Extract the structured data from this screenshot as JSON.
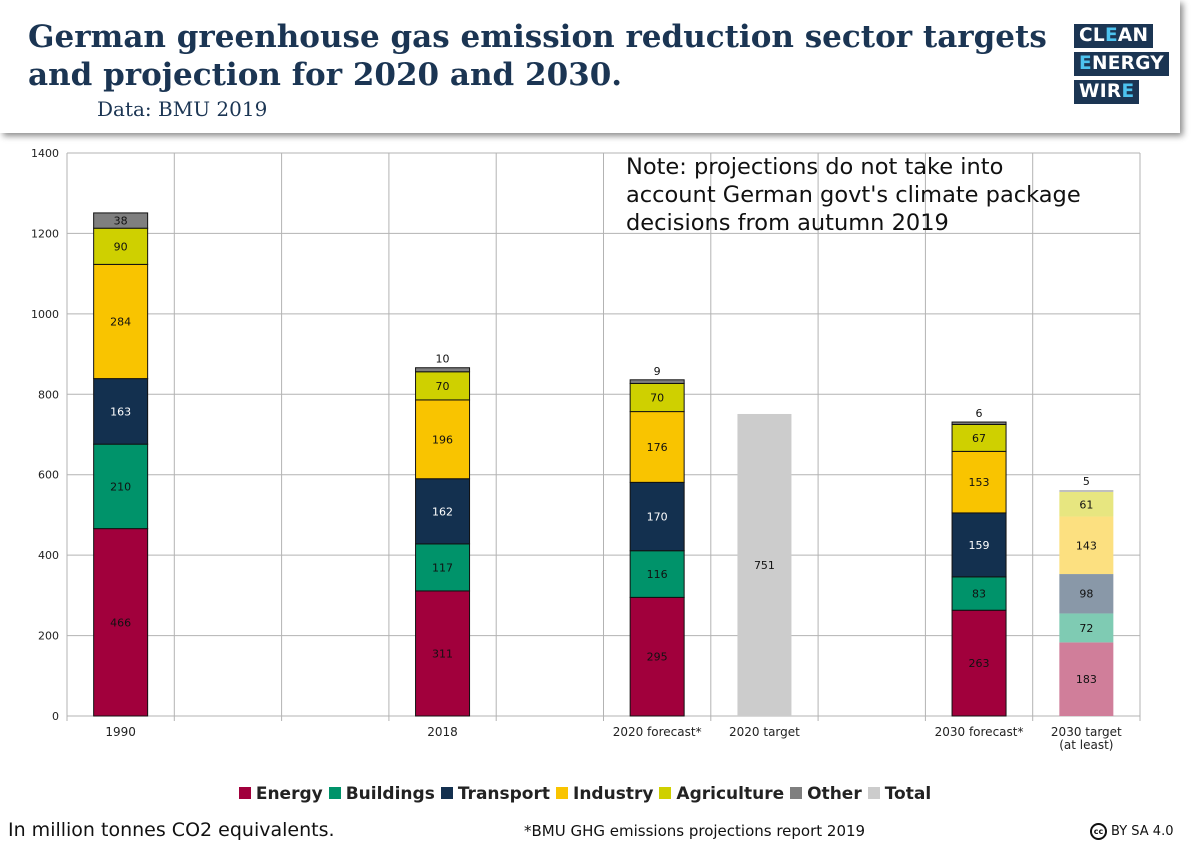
{
  "header": {
    "title": "German greenhouse gas emission reduction sector targets\nand projection for 2020 and 2030.",
    "subtitle": "Data: BMU 2019"
  },
  "logo": {
    "lines": [
      {
        "lead": "CL",
        "highlight": "E",
        "rest": "AN"
      },
      {
        "lead": "",
        "highlight": "E",
        "rest": "NERGY"
      },
      {
        "lead": "WIR",
        "highlight": "E",
        "rest": ""
      }
    ]
  },
  "note": [
    "Note: projections do not take into",
    "account German govt's climate package",
    "decisions from autumn 2019"
  ],
  "footer": {
    "unit_note": "In million tonnes CO2 equivalents.",
    "source_note": "*BMU GHG emissions projections report 2019",
    "cc_symbol": "cc",
    "license": "BY SA 4.0"
  },
  "legend": [
    {
      "name": "Energy",
      "color": "#a1003c"
    },
    {
      "name": "Buildings",
      "color": "#00936a"
    },
    {
      "name": "Transport",
      "color": "#13304f"
    },
    {
      "name": "Industry",
      "color": "#f9c400"
    },
    {
      "name": "Agriculture",
      "color": "#cfd000"
    },
    {
      "name": "Other",
      "color": "#7f7f7f"
    },
    {
      "name": "Total",
      "color": "#cccccc"
    }
  ],
  "chart_data": {
    "type": "bar",
    "stacked": true,
    "ylim": [
      0,
      1400
    ],
    "yticks": [
      0,
      200,
      400,
      600,
      800,
      1000,
      1200,
      1400
    ],
    "grid": true,
    "legend_position": "bottom",
    "categories": [
      {
        "label": [
          "1990"
        ],
        "slot": 0
      },
      {
        "label": [
          "2018"
        ],
        "slot": 3
      },
      {
        "label": [
          "2020 forecast*"
        ],
        "slot": 5
      },
      {
        "label": [
          "2020 target"
        ],
        "slot": 6
      },
      {
        "label": [
          "2030 forecast*"
        ],
        "slot": 8
      },
      {
        "label": [
          "2030 target",
          "(at least)"
        ],
        "slot": 9
      }
    ],
    "slots": 10,
    "series": [
      {
        "name": "Energy",
        "color": "#a1003c",
        "light_color": "#d07e9a",
        "label_color": "#111111",
        "values": [
          466,
          311,
          295,
          null,
          263,
          183
        ]
      },
      {
        "name": "Buildings",
        "color": "#00936a",
        "light_color": "#7fcbb3",
        "label_color": "#111111",
        "values": [
          210,
          117,
          116,
          null,
          83,
          72
        ]
      },
      {
        "name": "Transport",
        "color": "#13304f",
        "light_color": "#8998a8",
        "label_color": "#ffffff",
        "values": [
          163,
          162,
          170,
          null,
          159,
          98
        ]
      },
      {
        "name": "Industry",
        "color": "#f9c400",
        "light_color": "#fce080",
        "label_color": "#111111",
        "values": [
          284,
          196,
          176,
          null,
          153,
          143
        ]
      },
      {
        "name": "Agriculture",
        "color": "#cfd000",
        "light_color": "#e7e680",
        "label_color": "#111111",
        "values": [
          90,
          70,
          70,
          null,
          67,
          61
        ]
      },
      {
        "name": "Other",
        "color": "#7f7f7f",
        "light_color": "#bfbfbf",
        "label_color": "#111111",
        "values": [
          38,
          10,
          9,
          null,
          6,
          5
        ]
      },
      {
        "name": "Total",
        "color": "#cccccc",
        "light_color": "#cccccc",
        "label_color": "#111111",
        "values": [
          null,
          null,
          null,
          751,
          null,
          null
        ]
      }
    ],
    "light_categories": [
      5
    ],
    "labels_above": {
      "Other": [
        false,
        true,
        true,
        false,
        true,
        true
      ]
    }
  }
}
